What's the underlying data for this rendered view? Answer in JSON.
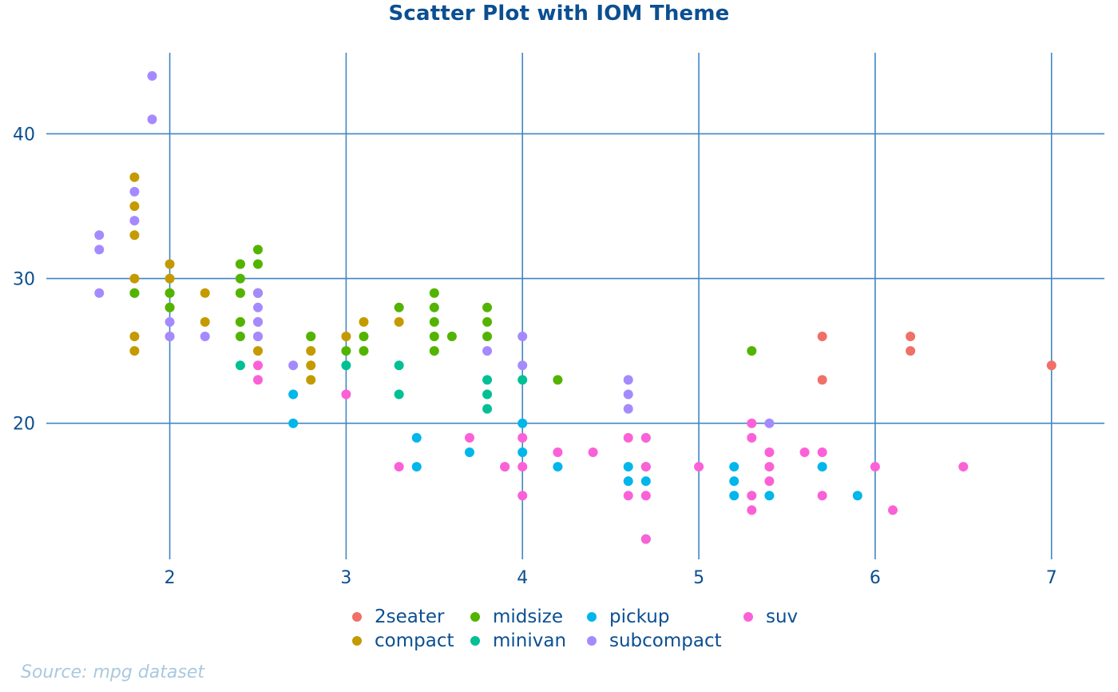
{
  "chart_data": {
    "type": "scatter",
    "title": "Scatter Plot with IOM Theme",
    "xlabel": "",
    "ylabel": "",
    "caption": "Source: mpg dataset",
    "xlim": [
      1.3,
      7.3
    ],
    "ylim": [
      10.6,
      45.6
    ],
    "x_ticks": [
      2,
      3,
      4,
      5,
      6,
      7
    ],
    "y_ticks": [
      20,
      30,
      40
    ],
    "grid": true,
    "legend_position": "bottom",
    "series": [
      {
        "name": "2seater",
        "color": "#f07068",
        "points": [
          [
            5.7,
            26
          ],
          [
            5.7,
            23
          ],
          [
            6.2,
            26
          ],
          [
            6.2,
            25
          ],
          [
            7.0,
            24
          ]
        ]
      },
      {
        "name": "compact",
        "color": "#c49a00",
        "points": [
          [
            1.8,
            37
          ],
          [
            1.8,
            35
          ],
          [
            1.8,
            33
          ],
          [
            1.8,
            30
          ],
          [
            1.8,
            29
          ],
          [
            1.8,
            26
          ],
          [
            1.8,
            25
          ],
          [
            2.0,
            31
          ],
          [
            2.0,
            30
          ],
          [
            2.0,
            29
          ],
          [
            2.0,
            28
          ],
          [
            2.0,
            26
          ],
          [
            2.2,
            29
          ],
          [
            2.2,
            27
          ],
          [
            2.4,
            31
          ],
          [
            2.4,
            29
          ],
          [
            2.4,
            27
          ],
          [
            2.5,
            29
          ],
          [
            2.5,
            27
          ],
          [
            2.5,
            26
          ],
          [
            2.5,
            25
          ],
          [
            2.8,
            26
          ],
          [
            2.8,
            25
          ],
          [
            2.8,
            24
          ],
          [
            2.8,
            23
          ],
          [
            3.0,
            26
          ],
          [
            3.1,
            27
          ],
          [
            3.3,
            27
          ]
        ]
      },
      {
        "name": "midsize",
        "color": "#53b400",
        "points": [
          [
            1.8,
            29
          ],
          [
            2.0,
            29
          ],
          [
            2.0,
            28
          ],
          [
            2.4,
            31
          ],
          [
            2.4,
            30
          ],
          [
            2.4,
            29
          ],
          [
            2.4,
            27
          ],
          [
            2.4,
            26
          ],
          [
            2.5,
            32
          ],
          [
            2.5,
            31
          ],
          [
            2.5,
            29
          ],
          [
            2.8,
            26
          ],
          [
            3.0,
            25
          ],
          [
            3.1,
            26
          ],
          [
            3.1,
            25
          ],
          [
            3.3,
            28
          ],
          [
            3.5,
            29
          ],
          [
            3.5,
            28
          ],
          [
            3.5,
            27
          ],
          [
            3.5,
            26
          ],
          [
            3.5,
            25
          ],
          [
            3.6,
            26
          ],
          [
            3.8,
            28
          ],
          [
            3.8,
            27
          ],
          [
            3.8,
            26
          ],
          [
            4.2,
            23
          ],
          [
            5.3,
            25
          ]
        ]
      },
      {
        "name": "minivan",
        "color": "#00c094",
        "points": [
          [
            2.4,
            24
          ],
          [
            3.0,
            24
          ],
          [
            3.3,
            24
          ],
          [
            3.3,
            22
          ],
          [
            3.8,
            23
          ],
          [
            3.8,
            22
          ],
          [
            3.8,
            21
          ],
          [
            4.0,
            23
          ]
        ]
      },
      {
        "name": "pickup",
        "color": "#00b6eb",
        "points": [
          [
            2.7,
            22
          ],
          [
            2.7,
            20
          ],
          [
            3.4,
            19
          ],
          [
            3.4,
            17
          ],
          [
            3.7,
            18
          ],
          [
            4.0,
            20
          ],
          [
            4.0,
            18
          ],
          [
            4.2,
            17
          ],
          [
            4.6,
            17
          ],
          [
            4.6,
            16
          ],
          [
            4.7,
            17
          ],
          [
            4.7,
            16
          ],
          [
            4.7,
            12
          ],
          [
            5.2,
            17
          ],
          [
            5.2,
            16
          ],
          [
            5.2,
            15
          ],
          [
            5.4,
            15
          ],
          [
            5.7,
            17
          ],
          [
            5.9,
            15
          ]
        ]
      },
      {
        "name": "subcompact",
        "color": "#a58aff",
        "points": [
          [
            1.6,
            33
          ],
          [
            1.6,
            32
          ],
          [
            1.6,
            29
          ],
          [
            1.8,
            36
          ],
          [
            1.8,
            34
          ],
          [
            1.9,
            44
          ],
          [
            1.9,
            41
          ],
          [
            2.0,
            27
          ],
          [
            2.0,
            26
          ],
          [
            2.2,
            26
          ],
          [
            2.5,
            29
          ],
          [
            2.5,
            28
          ],
          [
            2.5,
            27
          ],
          [
            2.5,
            26
          ],
          [
            2.7,
            24
          ],
          [
            3.8,
            25
          ],
          [
            3.9,
            17
          ],
          [
            4.0,
            26
          ],
          [
            4.0,
            24
          ],
          [
            4.6,
            23
          ],
          [
            4.6,
            22
          ],
          [
            4.6,
            21
          ],
          [
            4.7,
            19
          ],
          [
            5.4,
            20
          ]
        ]
      },
      {
        "name": "suv",
        "color": "#fb61d7",
        "points": [
          [
            2.5,
            24
          ],
          [
            2.5,
            23
          ],
          [
            3.0,
            22
          ],
          [
            3.3,
            17
          ],
          [
            3.7,
            19
          ],
          [
            3.9,
            17
          ],
          [
            4.0,
            19
          ],
          [
            4.0,
            17
          ],
          [
            4.0,
            15
          ],
          [
            4.2,
            18
          ],
          [
            4.4,
            18
          ],
          [
            4.6,
            19
          ],
          [
            4.6,
            15
          ],
          [
            4.7,
            19
          ],
          [
            4.7,
            17
          ],
          [
            4.7,
            15
          ],
          [
            4.7,
            12
          ],
          [
            5.0,
            17
          ],
          [
            5.3,
            20
          ],
          [
            5.3,
            19
          ],
          [
            5.3,
            15
          ],
          [
            5.3,
            14
          ],
          [
            5.4,
            18
          ],
          [
            5.4,
            17
          ],
          [
            5.4,
            16
          ],
          [
            5.6,
            18
          ],
          [
            5.7,
            18
          ],
          [
            5.7,
            15
          ],
          [
            6.0,
            17
          ],
          [
            6.1,
            14
          ],
          [
            6.5,
            17
          ]
        ]
      }
    ]
  }
}
